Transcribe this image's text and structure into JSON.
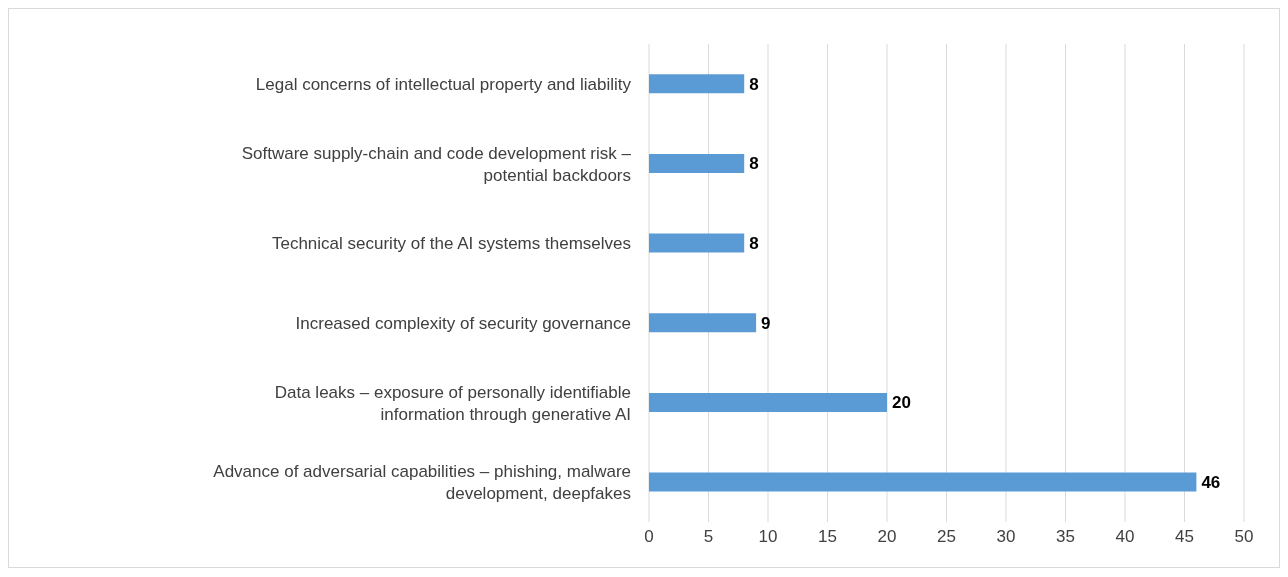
{
  "chart_data": {
    "type": "bar",
    "orientation": "horizontal",
    "categories": [
      "Legal concerns of intellectual property and liability",
      "Software supply-chain and code development risk – potential backdoors",
      "Technical security of the AI systems themselves",
      "Increased complexity of security governance",
      "Data leaks – exposure of personally identifiable information through generative AI",
      "Advance of adversarial capabilities – phishing, malware development, deepfakes"
    ],
    "values": [
      8,
      8,
      8,
      9,
      20,
      46
    ],
    "color": "#5b9bd5",
    "xlim": [
      0,
      50
    ],
    "xticks": [
      0,
      5,
      10,
      15,
      20,
      25,
      30,
      35,
      40,
      45,
      50
    ],
    "grid": "x",
    "data_labels": true
  }
}
